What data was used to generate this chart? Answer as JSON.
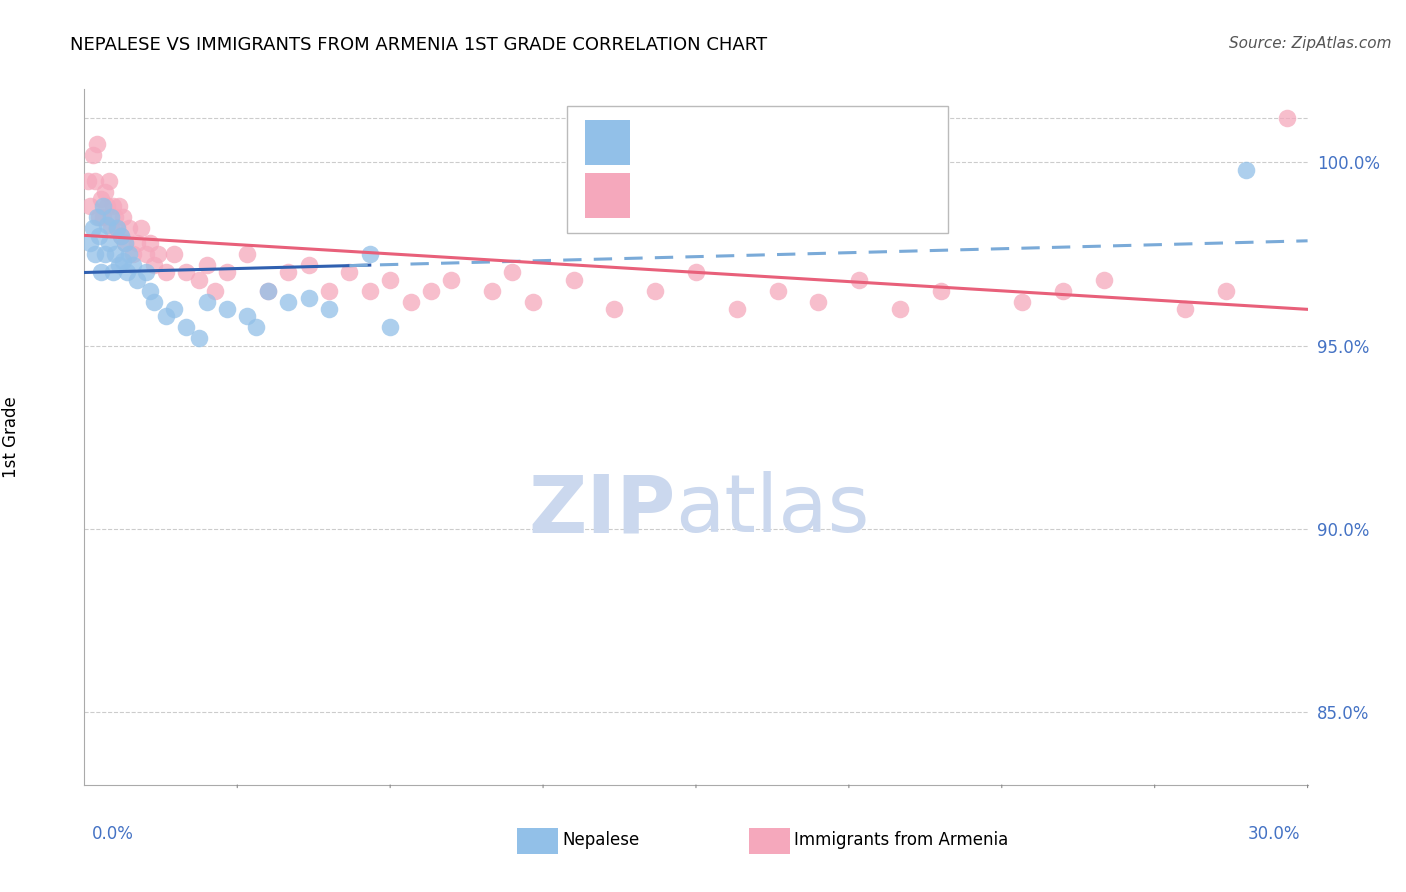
{
  "title": "NEPALESE VS IMMIGRANTS FROM ARMENIA 1ST GRADE CORRELATION CHART",
  "source": "Source: ZipAtlas.com",
  "ylabel": "1st Grade",
  "xlim": [
    0.0,
    30.0
  ],
  "ylim": [
    83.0,
    102.0
  ],
  "yticks": [
    85.0,
    90.0,
    95.0,
    100.0
  ],
  "ytick_labels": [
    "85.0%",
    "90.0%",
    "95.0%",
    "100.0%"
  ],
  "xtick_labels": [
    "0.0%",
    "30.0%"
  ],
  "legend_label_blue": "Nepalese",
  "legend_label_pink": "Immigrants from Armenia",
  "blue_color": "#92C0E8",
  "pink_color": "#F5A8BC",
  "trend_blue_solid_color": "#3060B0",
  "trend_blue_dash_color": "#7AAAD8",
  "trend_pink_color": "#E8607A",
  "watermark_zip": "ZIP",
  "watermark_atlas": "atlas",
  "watermark_color": "#CBD8EE",
  "blue_x": [
    0.15,
    0.2,
    0.25,
    0.3,
    0.35,
    0.4,
    0.45,
    0.5,
    0.55,
    0.6,
    0.65,
    0.7,
    0.75,
    0.8,
    0.85,
    0.9,
    0.95,
    1.0,
    1.05,
    1.1,
    1.2,
    1.3,
    1.5,
    1.6,
    1.7,
    2.0,
    2.2,
    2.5,
    2.8,
    3.0,
    3.5,
    4.0,
    4.2,
    4.5,
    5.0,
    5.5,
    6.0,
    7.0,
    7.5,
    28.5
  ],
  "blue_y": [
    97.8,
    98.2,
    97.5,
    98.5,
    98.0,
    97.0,
    98.8,
    97.5,
    98.3,
    97.8,
    98.5,
    97.0,
    97.5,
    98.2,
    97.2,
    98.0,
    97.3,
    97.8,
    97.0,
    97.5,
    97.2,
    96.8,
    97.0,
    96.5,
    96.2,
    95.8,
    96.0,
    95.5,
    95.2,
    96.2,
    96.0,
    95.8,
    95.5,
    96.5,
    96.2,
    96.3,
    96.0,
    97.5,
    95.5,
    99.8
  ],
  "pink_x": [
    0.1,
    0.15,
    0.2,
    0.25,
    0.3,
    0.35,
    0.4,
    0.45,
    0.5,
    0.55,
    0.6,
    0.65,
    0.7,
    0.75,
    0.8,
    0.85,
    0.9,
    0.95,
    1.0,
    1.1,
    1.2,
    1.3,
    1.4,
    1.5,
    1.6,
    1.7,
    1.8,
    2.0,
    2.2,
    2.5,
    2.8,
    3.0,
    3.2,
    3.5,
    4.0,
    4.5,
    5.0,
    5.5,
    6.0,
    6.5,
    7.0,
    7.5,
    8.0,
    8.5,
    9.0,
    10.0,
    10.5,
    11.0,
    12.0,
    13.0,
    14.0,
    15.0,
    16.0,
    17.0,
    18.0,
    19.0,
    20.0,
    21.0,
    23.0,
    24.0,
    25.0,
    27.0,
    28.0,
    29.5
  ],
  "pink_y": [
    99.5,
    98.8,
    100.2,
    99.5,
    100.5,
    98.5,
    99.0,
    98.5,
    99.2,
    98.8,
    99.5,
    98.2,
    98.8,
    98.5,
    98.2,
    98.8,
    98.0,
    98.5,
    97.8,
    98.2,
    97.5,
    97.8,
    98.2,
    97.5,
    97.8,
    97.2,
    97.5,
    97.0,
    97.5,
    97.0,
    96.8,
    97.2,
    96.5,
    97.0,
    97.5,
    96.5,
    97.0,
    97.2,
    96.5,
    97.0,
    96.5,
    96.8,
    96.2,
    96.5,
    96.8,
    96.5,
    97.0,
    96.2,
    96.8,
    96.0,
    96.5,
    97.0,
    96.0,
    96.5,
    96.2,
    96.8,
    96.0,
    96.5,
    96.2,
    96.5,
    96.8,
    96.0,
    96.5,
    101.2
  ]
}
